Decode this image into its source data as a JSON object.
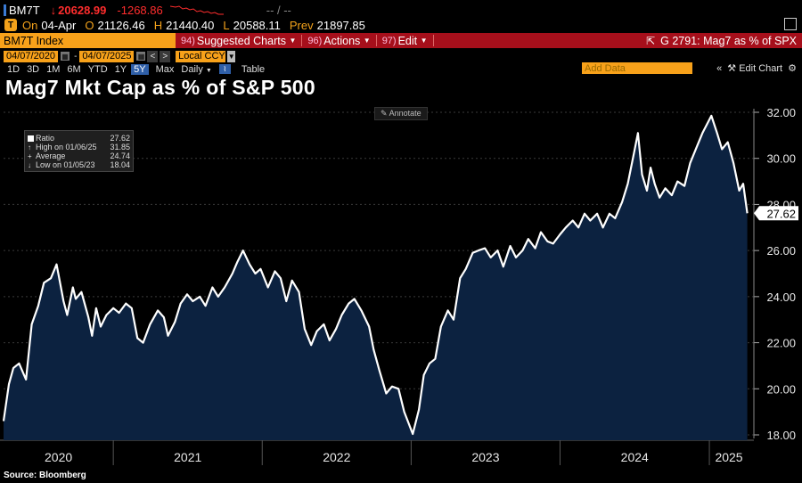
{
  "header": {
    "symbol": "BM7T",
    "last": "20628.99",
    "change": "-1268.86",
    "bid_ask": "-- / --",
    "row2": {
      "on_label": "On",
      "date": "04-Apr",
      "open_label": "O",
      "open": "21126.46",
      "high_label": "H",
      "high": "21440.40",
      "low_label": "L",
      "low": "20588.11",
      "prev_label": "Prev",
      "prev": "21897.85"
    }
  },
  "toolbar": {
    "index_name": "BM7T Index",
    "menus": [
      {
        "num": "94)",
        "label": "Suggested Charts"
      },
      {
        "num": "96)",
        "label": "Actions"
      },
      {
        "num": "97)",
        "label": "Edit"
      }
    ],
    "function_label": "G 2791: Mag7 as % of SPX"
  },
  "range": {
    "start": "04/07/2020",
    "end": "04/07/2025",
    "currency": "Local CCY"
  },
  "periods": [
    "1D",
    "3D",
    "1M",
    "6M",
    "YTD",
    "1Y",
    "5Y",
    "Max"
  ],
  "active_period": "5Y",
  "frequency": "Daily",
  "table_label": "Table",
  "add_data_label": "Add Data",
  "edit_chart_label": "Edit Chart",
  "annotate_label": "Annotate",
  "source": "Source: Bloomberg",
  "colors": {
    "line": "#ffffff",
    "area": "#0c2240",
    "toolbar_red": "#a60f1b",
    "accent_orange": "#f7a11a",
    "down_red": "#ff2d2d"
  },
  "chart_data": {
    "type": "area",
    "title": "Mag7 Mkt Cap as % of S&P 500",
    "legend": {
      "placement": "top-left",
      "entries": [
        {
          "label": "Ratio",
          "value": "27.62"
        },
        {
          "label": "High on 01/06/25",
          "value": "31.85"
        },
        {
          "label": "Average",
          "value": "24.74"
        },
        {
          "label": "Low on 01/05/23",
          "value": "18.04"
        }
      ]
    },
    "x_ticks": [
      "2020",
      "2021",
      "2022",
      "2023",
      "2024",
      "2025"
    ],
    "y_ticks": [
      "18.00",
      "20.00",
      "22.00",
      "24.00",
      "26.00",
      "28.00",
      "30.00",
      "32.00"
    ],
    "ylim": [
      18,
      32
    ],
    "last_value_label": "27.62",
    "grid": true,
    "series": [
      {
        "name": "Ratio",
        "x": [
          "2020-04-07",
          "2020-04-20",
          "2020-05-01",
          "2020-05-15",
          "2020-06-01",
          "2020-06-15",
          "2020-07-01",
          "2020-07-15",
          "2020-08-01",
          "2020-08-15",
          "2020-09-01",
          "2020-09-10",
          "2020-09-24",
          "2020-10-01",
          "2020-10-15",
          "2020-11-01",
          "2020-11-10",
          "2020-11-20",
          "2020-12-01",
          "2020-12-15",
          "2021-01-01",
          "2021-01-15",
          "2021-02-01",
          "2021-02-15",
          "2021-03-01",
          "2021-03-15",
          "2021-04-01",
          "2021-04-20",
          "2021-05-05",
          "2021-05-15",
          "2021-06-01",
          "2021-06-15",
          "2021-07-01",
          "2021-07-15",
          "2021-08-01",
          "2021-08-15",
          "2021-09-01",
          "2021-09-15",
          "2021-10-01",
          "2021-10-20",
          "2021-11-01",
          "2021-11-15",
          "2021-12-01",
          "2021-12-15",
          "2021-12-28",
          "2022-01-15",
          "2022-02-01",
          "2022-02-15",
          "2022-03-01",
          "2022-03-15",
          "2022-04-01",
          "2022-04-15",
          "2022-05-01",
          "2022-05-15",
          "2022-06-01",
          "2022-06-15",
          "2022-07-01",
          "2022-07-15",
          "2022-08-01",
          "2022-08-15",
          "2022-09-01",
          "2022-09-20",
          "2022-10-01",
          "2022-10-15",
          "2022-11-01",
          "2022-11-15",
          "2022-12-01",
          "2022-12-15",
          "2023-01-05",
          "2023-01-20",
          "2023-02-01",
          "2023-02-15",
          "2023-03-01",
          "2023-03-15",
          "2023-04-01",
          "2023-04-15",
          "2023-05-01",
          "2023-05-15",
          "2023-06-01",
          "2023-06-15",
          "2023-07-01",
          "2023-07-15",
          "2023-08-01",
          "2023-08-15",
          "2023-09-01",
          "2023-09-15",
          "2023-10-01",
          "2023-10-15",
          "2023-11-01",
          "2023-11-15",
          "2023-12-01",
          "2023-12-15",
          "2024-01-01",
          "2024-01-15",
          "2024-02-01",
          "2024-02-15",
          "2024-03-01",
          "2024-03-15",
          "2024-04-01",
          "2024-04-15",
          "2024-05-01",
          "2024-05-15",
          "2024-06-01",
          "2024-06-15",
          "2024-07-01",
          "2024-07-10",
          "2024-07-20",
          "2024-08-01",
          "2024-08-10",
          "2024-08-20",
          "2024-09-01",
          "2024-09-15",
          "2024-10-01",
          "2024-10-15",
          "2024-11-01",
          "2024-11-15",
          "2024-12-01",
          "2024-12-15",
          "2025-01-06",
          "2025-01-20",
          "2025-02-01",
          "2025-02-15",
          "2025-03-01",
          "2025-03-15",
          "2025-03-25",
          "2025-04-04"
        ],
        "values": [
          18.6,
          20.2,
          20.9,
          21.1,
          20.4,
          22.8,
          23.6,
          24.6,
          24.8,
          25.4,
          23.8,
          23.2,
          24.4,
          23.9,
          24.2,
          23.1,
          22.3,
          23.5,
          22.7,
          23.2,
          23.5,
          23.3,
          23.7,
          23.5,
          22.2,
          22.0,
          22.8,
          23.4,
          23.1,
          22.3,
          22.9,
          23.7,
          24.1,
          23.8,
          24.0,
          23.6,
          24.4,
          24.0,
          24.4,
          25.0,
          25.5,
          26.0,
          25.4,
          25.0,
          25.2,
          24.4,
          25.1,
          24.8,
          23.8,
          24.7,
          24.2,
          22.6,
          21.9,
          22.5,
          22.8,
          22.1,
          22.6,
          23.2,
          23.7,
          23.9,
          23.4,
          22.7,
          21.7,
          20.8,
          19.8,
          20.1,
          20.0,
          19.0,
          18.04,
          19.1,
          20.6,
          21.1,
          21.3,
          22.7,
          23.4,
          23.0,
          24.8,
          25.2,
          25.9,
          26.0,
          26.1,
          25.7,
          26.0,
          25.3,
          26.2,
          25.7,
          26.0,
          26.5,
          26.1,
          26.8,
          26.4,
          26.3,
          26.7,
          27.0,
          27.3,
          27.0,
          27.6,
          27.3,
          27.6,
          27.0,
          27.6,
          27.4,
          28.1,
          28.9,
          30.3,
          31.1,
          29.3,
          28.6,
          29.6,
          28.9,
          28.3,
          28.7,
          28.4,
          29.0,
          28.8,
          29.8,
          30.5,
          31.1,
          31.85,
          31.1,
          30.4,
          30.7,
          29.8,
          28.6,
          28.9,
          27.62
        ]
      }
    ]
  }
}
